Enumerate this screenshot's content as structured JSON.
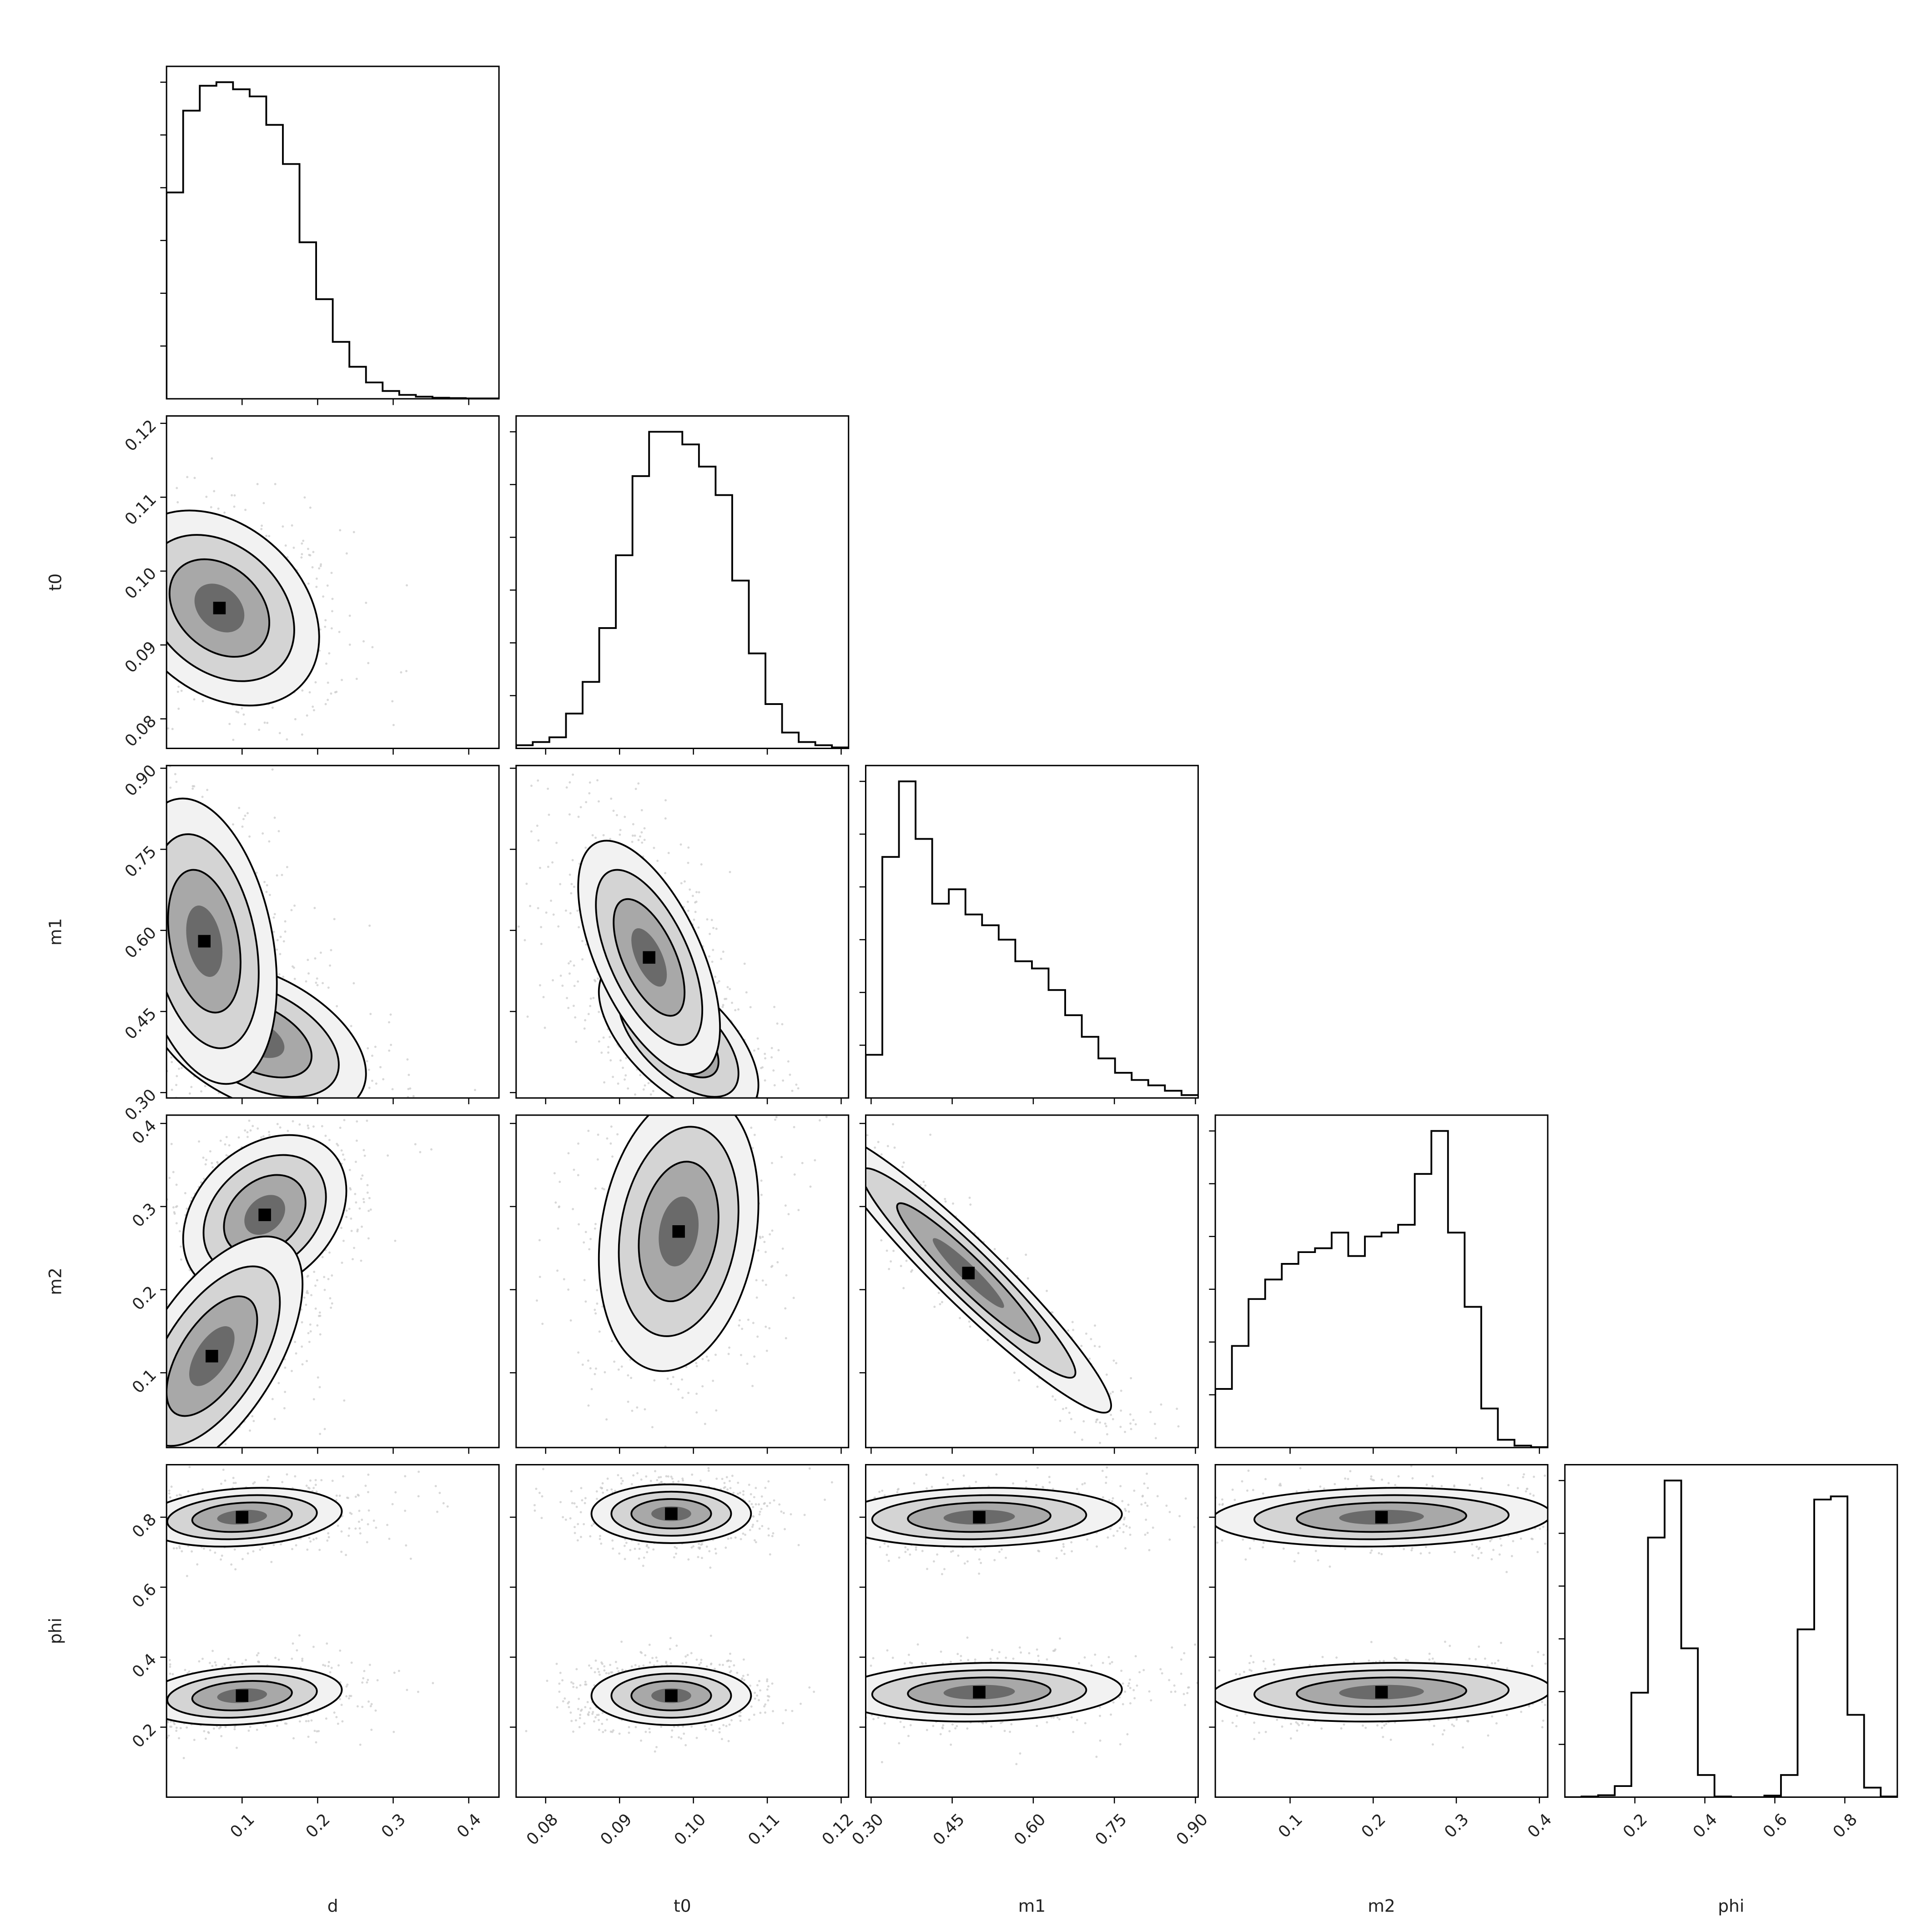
{
  "chart_data": {
    "type": "corner",
    "parameters": [
      "d",
      "t0",
      "m1",
      "m2",
      "phi"
    ],
    "axis_labels": {
      "x": [
        "d",
        "t0",
        "m1",
        "m2",
        "phi"
      ],
      "y": [
        "t0",
        "m1",
        "m2",
        "phi"
      ]
    },
    "ranges": {
      "d": [
        0.0,
        0.44
      ],
      "t0": [
        0.076,
        0.121
      ],
      "m1": [
        0.29,
        0.905
      ],
      "m2": [
        0.01,
        0.41
      ],
      "phi": [
        0.0,
        0.95
      ]
    },
    "ticks": {
      "d": {
        "values": [
          0.1,
          0.2,
          0.3,
          0.4
        ],
        "labels": [
          "0.1",
          "0.2",
          "0.3",
          "0.4"
        ]
      },
      "t0": {
        "values": [
          0.08,
          0.09,
          0.1,
          0.11,
          0.12
        ],
        "labels": [
          "0.08",
          "0.09",
          "0.10",
          "0.11",
          "0.12"
        ]
      },
      "m1": {
        "values": [
          0.3,
          0.45,
          0.6,
          0.75,
          0.9
        ],
        "labels": [
          "0.30",
          "0.45",
          "0.60",
          "0.75",
          "0.90"
        ]
      },
      "m2": {
        "values": [
          0.1,
          0.2,
          0.3,
          0.4
        ],
        "labels": [
          "0.1",
          "0.2",
          "0.3",
          "0.4"
        ]
      },
      "phi": {
        "values": [
          0.2,
          0.4,
          0.6,
          0.8
        ],
        "labels": [
          "0.2",
          "0.4",
          "0.6",
          "0.8"
        ]
      }
    },
    "histograms": {
      "d": [
        0.58,
        0.81,
        0.88,
        0.89,
        0.87,
        0.85,
        0.77,
        0.66,
        0.44,
        0.28,
        0.16,
        0.09,
        0.046,
        0.022,
        0.011,
        0.006,
        0.003,
        0.002,
        0.001,
        0.001
      ],
      "t0": [
        0.01,
        0.02,
        0.035,
        0.11,
        0.21,
        0.38,
        0.61,
        0.86,
        1.0,
        1.0,
        0.96,
        0.89,
        0.8,
        0.53,
        0.3,
        0.14,
        0.05,
        0.02,
        0.01,
        0.003
      ],
      "m1": [
        0.12,
        0.67,
        0.88,
        0.72,
        0.54,
        0.58,
        0.51,
        0.48,
        0.44,
        0.38,
        0.36,
        0.3,
        0.23,
        0.17,
        0.11,
        0.07,
        0.05,
        0.035,
        0.02,
        0.008
      ],
      "m2": [
        0.15,
        0.26,
        0.38,
        0.43,
        0.47,
        0.5,
        0.51,
        0.55,
        0.49,
        0.54,
        0.55,
        0.57,
        0.7,
        0.81,
        0.55,
        0.36,
        0.1,
        0.02,
        0.005,
        0.001
      ],
      "phi": [
        0,
        0.002,
        0.006,
        0.035,
        0.33,
        0.82,
        1.0,
        0.47,
        0.07,
        0.002,
        0,
        0,
        0.005,
        0.07,
        0.53,
        0.94,
        0.95,
        0.26,
        0.03,
        0.002
      ]
    },
    "joint_modes": {
      "t0|d": [
        {
          "x": 0.07,
          "y": 0.095,
          "sx": 0.055,
          "sy": 0.0055,
          "r": -0.3
        }
      ],
      "m1|d": [
        {
          "x": 0.12,
          "y": 0.4,
          "sx": 0.06,
          "sy": 0.06,
          "r": -0.45
        },
        {
          "x": 0.05,
          "y": 0.58,
          "sx": 0.04,
          "sy": 0.11,
          "r": -0.3
        }
      ],
      "m1|t0": [
        {
          "x": 0.098,
          "y": 0.4,
          "sx": 0.0045,
          "sy": 0.06,
          "r": -0.6
        },
        {
          "x": 0.094,
          "y": 0.55,
          "sx": 0.004,
          "sy": 0.09,
          "r": -0.6
        }
      ],
      "m2|d": [
        {
          "x": 0.13,
          "y": 0.29,
          "sx": 0.045,
          "sy": 0.04,
          "r": 0.3
        },
        {
          "x": 0.06,
          "y": 0.12,
          "sx": 0.05,
          "sy": 0.06,
          "r": 0.6
        }
      ],
      "m2|t0": [
        {
          "x": 0.098,
          "y": 0.27,
          "sx": 0.0045,
          "sy": 0.07,
          "r": 0.2
        }
      ],
      "m2|m1": [
        {
          "x": 0.48,
          "y": 0.22,
          "sx": 0.11,
          "sy": 0.07,
          "r": -0.95
        }
      ],
      "phi|d": [
        {
          "x": 0.1,
          "y": 0.8,
          "sx": 0.055,
          "sy": 0.035,
          "r": 0.2
        },
        {
          "x": 0.1,
          "y": 0.29,
          "sx": 0.055,
          "sy": 0.035,
          "r": 0.2
        }
      ],
      "phi|t0": [
        {
          "x": 0.097,
          "y": 0.81,
          "sx": 0.0045,
          "sy": 0.035,
          "r": 0
        },
        {
          "x": 0.097,
          "y": 0.29,
          "sx": 0.0045,
          "sy": 0.035,
          "r": 0
        }
      ],
      "phi|m1": [
        {
          "x": 0.5,
          "y": 0.8,
          "sx": 0.11,
          "sy": 0.035,
          "r": 0.1
        },
        {
          "x": 0.5,
          "y": 0.3,
          "sx": 0.11,
          "sy": 0.035,
          "r": 0.1
        }
      ],
      "phi|m2": [
        {
          "x": 0.21,
          "y": 0.8,
          "sx": 0.085,
          "sy": 0.035,
          "r": 0.1
        },
        {
          "x": 0.21,
          "y": 0.3,
          "sx": 0.085,
          "sy": 0.035,
          "r": 0.1
        }
      ]
    },
    "contour_levels": [
      0.25,
      0.5,
      0.75
    ],
    "grid": false,
    "legend": "none",
    "colors": {
      "line": "#000000",
      "scatter": "#c8c8c8",
      "shade": "#333333",
      "background": "#ffffff"
    }
  }
}
